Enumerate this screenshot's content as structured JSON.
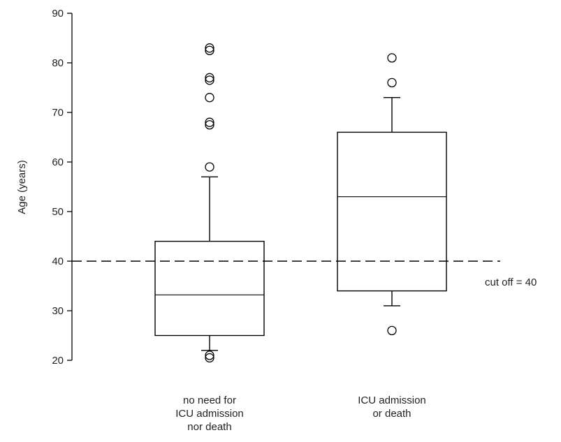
{
  "chart_data": {
    "type": "box",
    "title": "",
    "xlabel": "",
    "ylabel": "Age (years)",
    "ylim": [
      20,
      90
    ],
    "yticks": [
      20,
      30,
      40,
      50,
      60,
      70,
      80,
      90
    ],
    "ytick_labels": [
      "20",
      "30",
      "40",
      "50",
      "60",
      "70",
      "80",
      "90"
    ],
    "grid": false,
    "categories": [
      [
        "no need for",
        "ICU admission",
        "nor death"
      ],
      [
        "ICU admission",
        "or death"
      ]
    ],
    "boxes": [
      {
        "whisker_low": 22,
        "q1": 25,
        "median": 33.2,
        "q3": 44,
        "whisker_high": 57,
        "outliers": [
          20.5,
          21,
          59,
          67.5,
          68,
          73,
          76.5,
          77,
          82.5,
          83
        ]
      },
      {
        "whisker_low": 31,
        "q1": 34,
        "median": 53,
        "q3": 66,
        "whisker_high": 73,
        "outliers": [
          26,
          76,
          81
        ]
      }
    ],
    "reference_line": {
      "y": 40,
      "style": "dashed",
      "label": "cut off = 40"
    }
  }
}
